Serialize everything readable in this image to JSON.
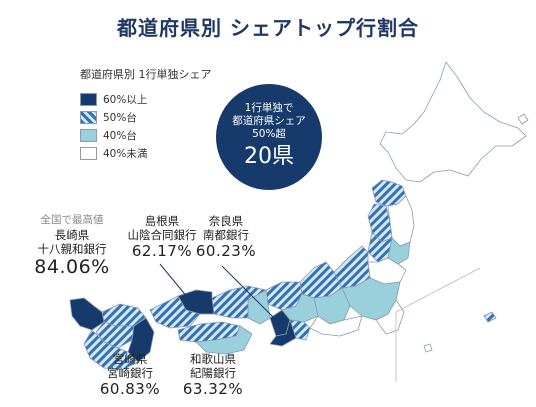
{
  "title": "都道府県別 シェアトップ行割合",
  "legend": {
    "title": "都道府県別 1行単独シェア",
    "items": [
      {
        "label": "60%以上",
        "style": "dark"
      },
      {
        "label": "50%台",
        "style": "stripe"
      },
      {
        "label": "40%台",
        "style": "light"
      },
      {
        "label": "40%未満",
        "style": "white"
      }
    ]
  },
  "callout": {
    "line1": "1行単独で",
    "line2": "都道府県シェア",
    "line3": "50%超",
    "count": "20県"
  },
  "labels": {
    "top": {
      "caption": "全国で最高値",
      "line1": "長崎県",
      "line2": "十八親和銀行",
      "pct": "84.06%"
    },
    "shimane": {
      "line1": "島根県",
      "line2": "山陰合同銀行",
      "pct": "62.17%"
    },
    "nara": {
      "line1": "奈良県",
      "line2": "南都銀行",
      "pct": "60.23%"
    },
    "miyazaki": {
      "line1": "宮崎県",
      "line2": "宮崎銀行",
      "pct": "60.83%"
    },
    "wakayama": {
      "line1": "和歌山県",
      "line2": "紀陽銀行",
      "pct": "63.32%"
    }
  },
  "colors": {
    "dark": "#163a6b",
    "stripe_fg": "#2f72b7",
    "stripe_bg": "#d7e7f4",
    "light": "#9ad0dc",
    "white": "#ffffff",
    "border": "#8a9bb0"
  }
}
